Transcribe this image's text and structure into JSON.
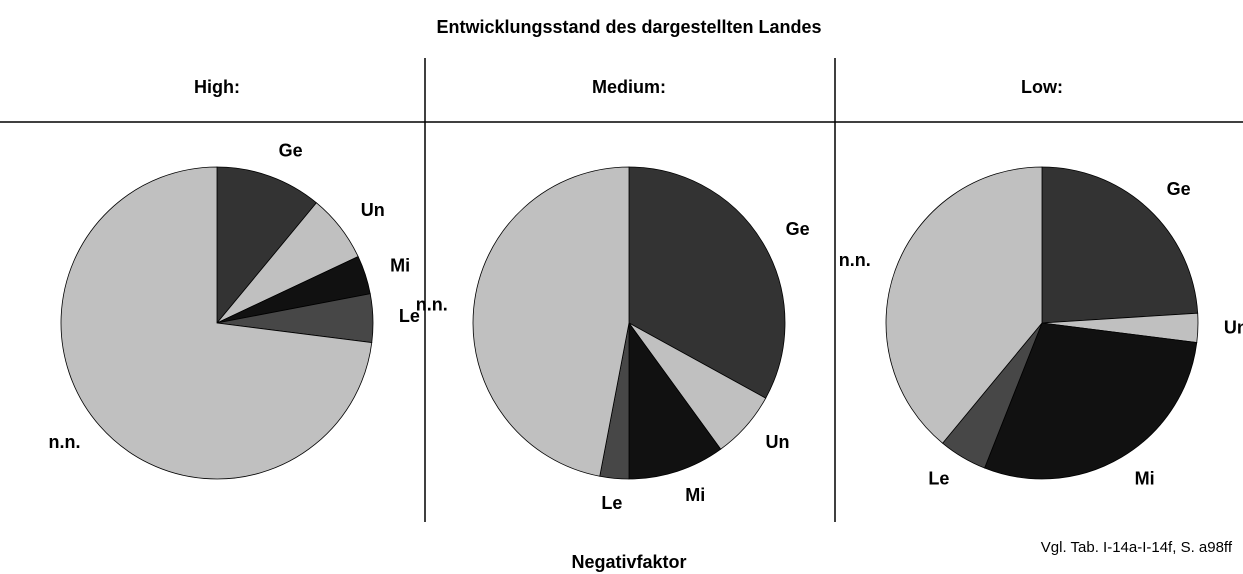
{
  "title": "Entwicklungsstand des dargestellten Landes",
  "caption": "Negativfaktor",
  "source": "Vgl. Tab. I-14a-I-14f, S. a98ff",
  "chart_data": [
    {
      "type": "pie",
      "title": "High:",
      "categories": [
        "Ge",
        "Un",
        "Mi",
        "Le",
        "n.n."
      ],
      "values": [
        11,
        7,
        4,
        5,
        73
      ],
      "colors": [
        "#333333",
        "#c0c0c0",
        "#111111",
        "#474747",
        "#c0c0c0"
      ]
    },
    {
      "type": "pie",
      "title": "Medium:",
      "categories": [
        "Ge",
        "Un",
        "Mi",
        "Le",
        "n.n."
      ],
      "values": [
        33,
        7,
        10,
        3,
        47
      ],
      "colors": [
        "#333333",
        "#c0c0c0",
        "#111111",
        "#474747",
        "#c0c0c0"
      ]
    },
    {
      "type": "pie",
      "title": "Low:",
      "categories": [
        "Ge",
        "Un",
        "Mi",
        "Le",
        "n.n."
      ],
      "values": [
        24,
        3,
        29,
        5,
        39
      ],
      "colors": [
        "#333333",
        "#c0c0c0",
        "#111111",
        "#474747",
        "#c0c0c0"
      ]
    }
  ]
}
